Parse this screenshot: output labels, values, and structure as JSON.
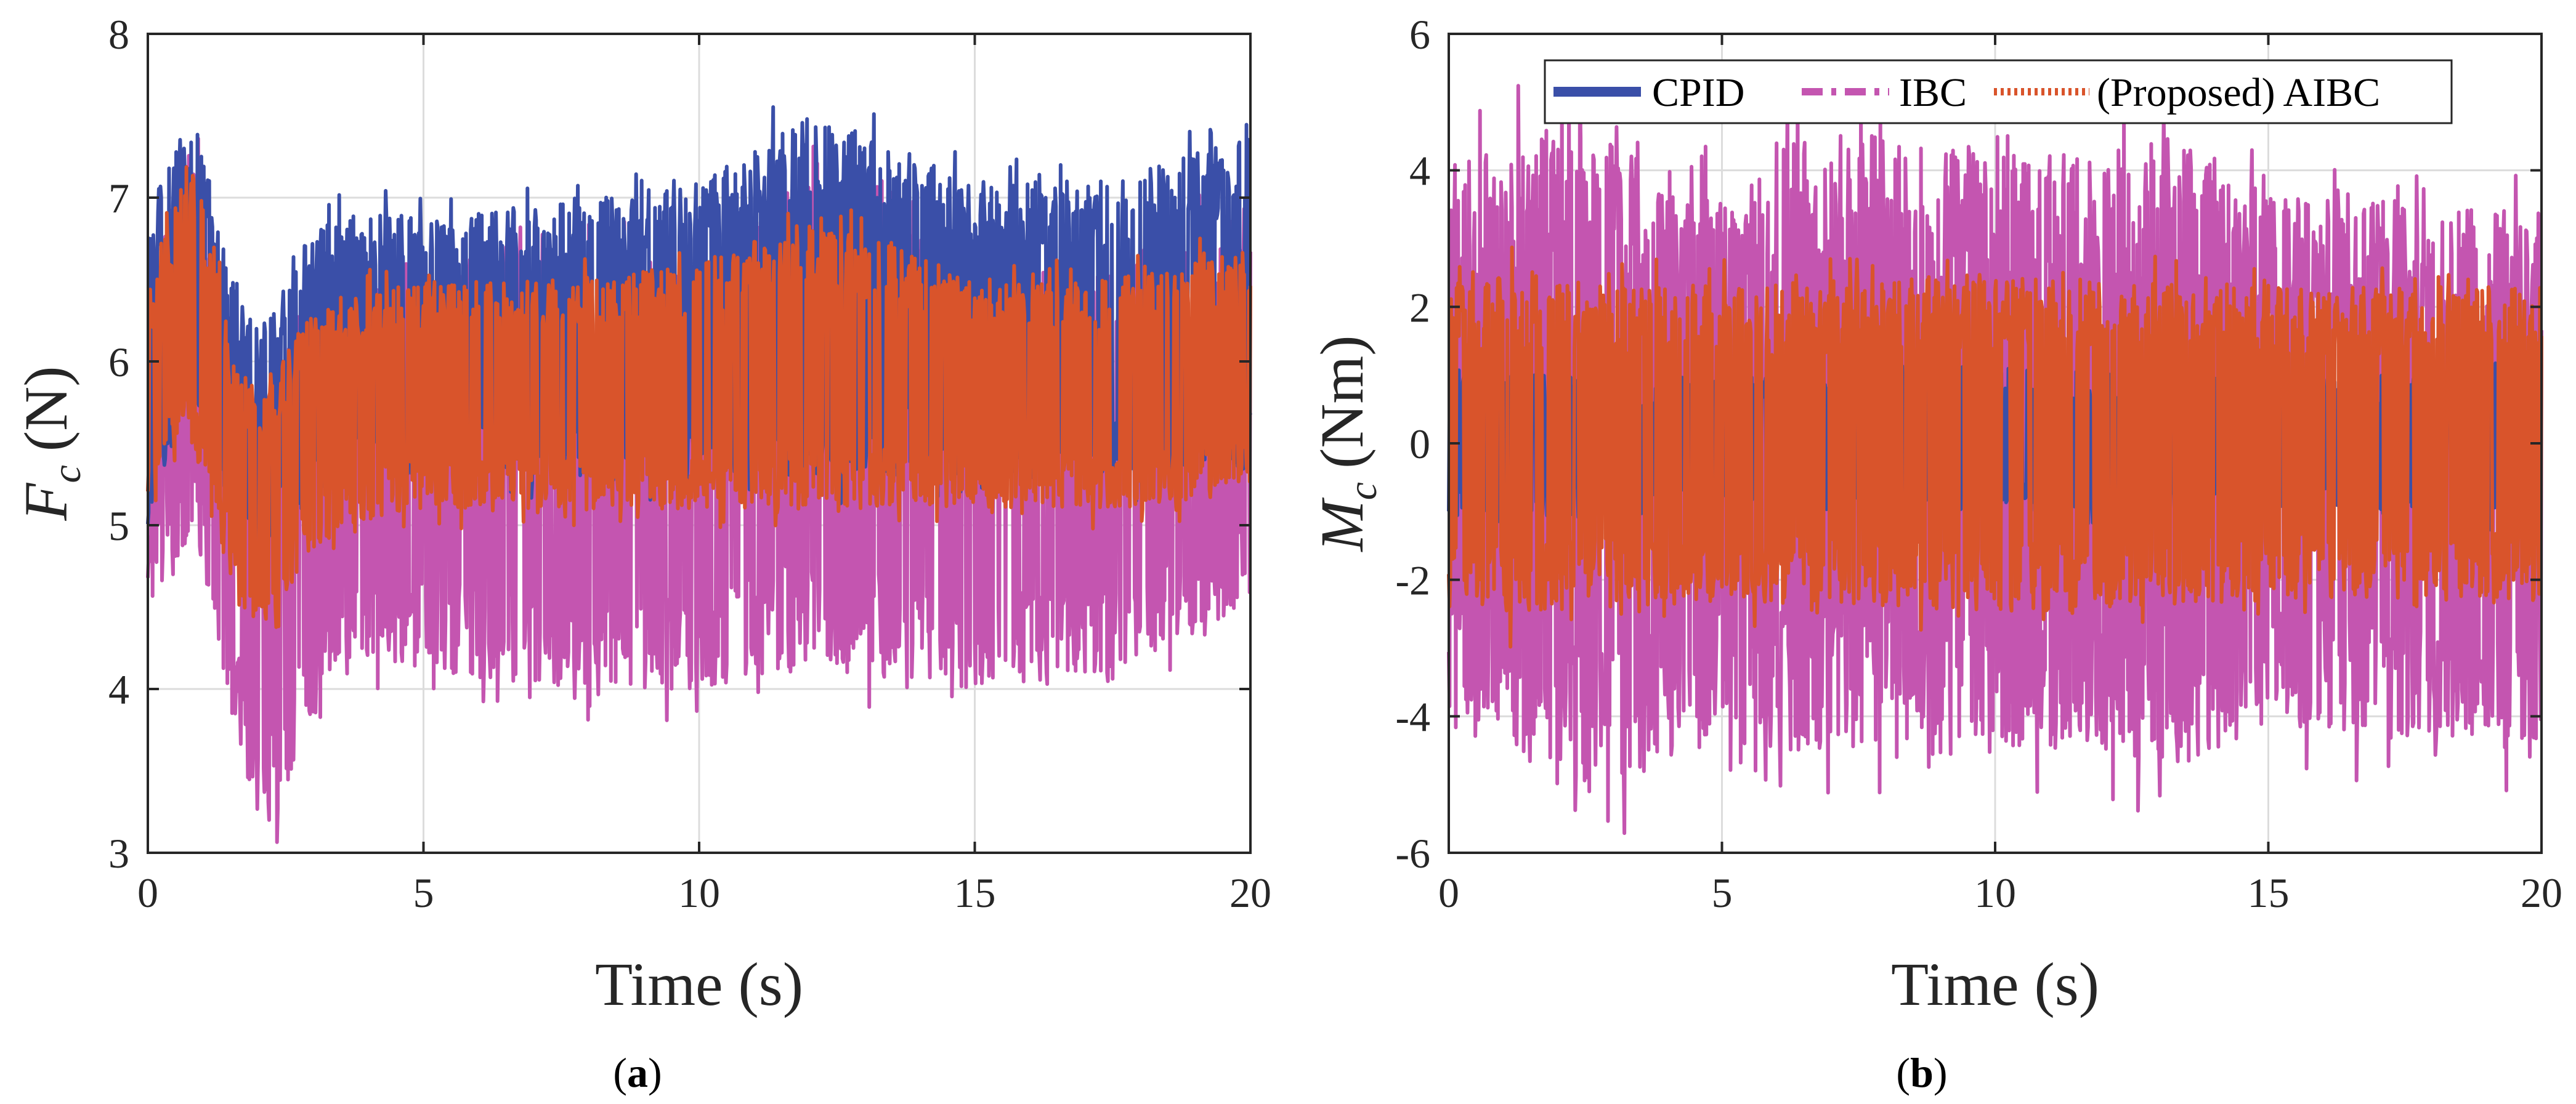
{
  "chart_data": [
    {
      "type": "line",
      "panel_label": {
        "open": "(",
        "letter": "a",
        "close": ")"
      },
      "xlabel": "Time (s)",
      "ylabel": {
        "symbol": "F",
        "sub": "c",
        "unit": "(N)"
      },
      "xlim": [
        0,
        20
      ],
      "ylim": [
        3,
        8
      ],
      "xticks": [
        "0",
        "5",
        "10",
        "15",
        "20"
      ],
      "yticks": [
        "3",
        "4",
        "5",
        "6",
        "7",
        "8"
      ],
      "grid": true,
      "series": [
        {
          "name": "CPID",
          "color": "#3a4fa8",
          "style": "solid",
          "envelope": {
            "t": [
              0,
              0.5,
              0.8,
              1.2,
              1.6,
              2.0,
              2.3,
              2.7,
              3.5,
              5,
              7.5,
              10,
              12,
              15,
              17.5,
              20
            ],
            "upper": [
              6.8,
              7.4,
              7.6,
              7.0,
              6.4,
              6.2,
              6.3,
              6.7,
              6.9,
              6.9,
              7.0,
              7.1,
              7.5,
              7.1,
              7.1,
              7.4
            ],
            "lower": [
              5.0,
              5.6,
              5.8,
              5.4,
              5.0,
              4.8,
              4.9,
              5.1,
              5.3,
              5.3,
              5.3,
              5.3,
              5.3,
              5.3,
              5.3,
              5.3
            ]
          }
        },
        {
          "name": "IBC",
          "color": "#c455b0",
          "style": "dashdot",
          "envelope": {
            "t": [
              0,
              0.5,
              0.8,
              1.2,
              1.6,
              2.0,
              2.3,
              2.7,
              3.5,
              5,
              7.5,
              10,
              12,
              15,
              17.5,
              20
            ],
            "upper": [
              6.3,
              7.1,
              7.3,
              6.8,
              6.2,
              5.7,
              5.9,
              6.3,
              6.5,
              6.6,
              6.6,
              6.7,
              7.2,
              6.6,
              6.6,
              7.0
            ],
            "lower": [
              4.6,
              4.8,
              4.9,
              4.4,
              3.7,
              3.2,
              3.1,
              3.6,
              4.2,
              4.1,
              4.0,
              4.0,
              4.1,
              4.0,
              4.1,
              4.5
            ]
          }
        },
        {
          "name": "(Proposed) AIBC",
          "color": "#d9542b",
          "style": "dotted",
          "envelope": {
            "t": [
              0,
              0.5,
              0.8,
              1.2,
              1.6,
              2.0,
              2.3,
              2.7,
              3.5,
              5,
              7.5,
              10,
              12,
              15,
              17.5,
              20
            ],
            "upper": [
              6.3,
              7.0,
              7.2,
              6.7,
              6.0,
              5.8,
              5.9,
              6.2,
              6.4,
              6.5,
              6.5,
              6.6,
              6.9,
              6.5,
              6.5,
              6.7
            ],
            "lower": [
              5.1,
              5.4,
              5.5,
              5.0,
              4.6,
              4.4,
              4.3,
              4.7,
              5.0,
              5.1,
              5.1,
              5.1,
              5.1,
              5.1,
              5.1,
              5.2
            ]
          }
        }
      ]
    },
    {
      "type": "line",
      "panel_label": {
        "open": "(",
        "letter": "b",
        "close": ")"
      },
      "xlabel": "Time (s)",
      "ylabel": {
        "symbol": "M",
        "sub": "c",
        "unit": "(Nm)"
      },
      "xlim": [
        0,
        20
      ],
      "ylim": [
        -6,
        6
      ],
      "xticks": [
        "0",
        "5",
        "10",
        "15",
        "20"
      ],
      "yticks": [
        "-6",
        "-4",
        "-2",
        "0",
        "2",
        "4",
        "6"
      ],
      "grid": true,
      "legend": {
        "position": "top",
        "orientation": "horizontal"
      },
      "series": [
        {
          "name": "CPID",
          "color": "#3a4fa8",
          "style": "solid",
          "envelope": {
            "t": [
              0,
              5,
              10,
              15,
              20
            ],
            "upper": [
              1.0,
              1.0,
              1.1,
              1.0,
              1.0
            ],
            "lower": [
              -1.1,
              -1.0,
              -1.0,
              -1.0,
              -1.1
            ]
          }
        },
        {
          "name": "IBC",
          "color": "#c455b0",
          "style": "dashdot",
          "envelope": {
            "t": [
              0,
              2.5,
              5,
              6.3,
              10,
              13.5,
              15,
              20
            ],
            "upper": [
              4.3,
              4.6,
              3.5,
              4.7,
              4.2,
              4.5,
              3.6,
              3.4
            ],
            "lower": [
              -3.8,
              -5.3,
              -4.2,
              -4.5,
              -4.4,
              -4.7,
              -4.1,
              -4.6
            ]
          }
        },
        {
          "name": "(Proposed) AIBC",
          "color": "#d9542b",
          "style": "dotted",
          "envelope": {
            "t": [
              0,
              5,
              10,
              15,
              20
            ],
            "upper": [
              2.5,
              2.3,
              2.5,
              2.3,
              2.3
            ],
            "lower": [
              -2.6,
              -2.3,
              -2.5,
              -2.3,
              -2.3
            ]
          }
        }
      ]
    }
  ]
}
